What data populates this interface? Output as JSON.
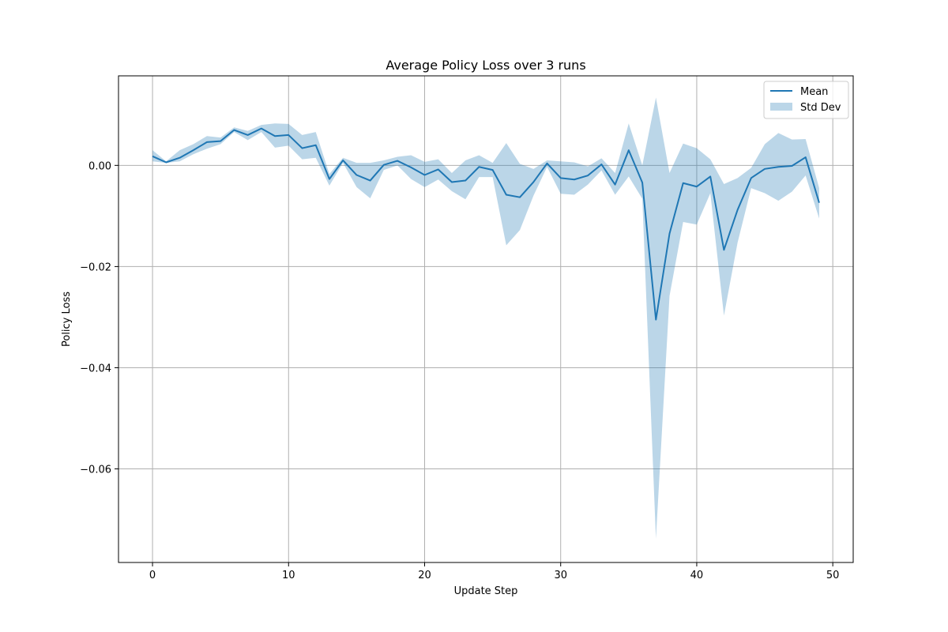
{
  "chart_data": {
    "type": "line",
    "title": "Average Policy Loss over 3 runs",
    "xlabel": "Update Step",
    "ylabel": "Policy Loss",
    "xlim": [
      -2.5,
      51.5
    ],
    "ylim": [
      -0.0785,
      0.0177
    ],
    "xticks": [
      0,
      10,
      20,
      30,
      40,
      50
    ],
    "xtick_labels": [
      "0",
      "10",
      "20",
      "30",
      "40",
      "50"
    ],
    "yticks": [
      -0.06,
      -0.04,
      -0.02,
      0.0
    ],
    "ytick_labels": [
      "−0.06",
      "−0.04",
      "−0.02",
      "0.00"
    ],
    "grid": true,
    "legend_position": "top-right",
    "colors": {
      "line": "#1f77b4",
      "band": "#1f77b4",
      "grid": "#b0b0b0"
    },
    "x": [
      0,
      1,
      2,
      3,
      4,
      5,
      6,
      7,
      8,
      9,
      10,
      11,
      12,
      13,
      14,
      15,
      16,
      17,
      18,
      19,
      20,
      21,
      22,
      23,
      24,
      25,
      26,
      27,
      28,
      29,
      30,
      31,
      32,
      33,
      34,
      35,
      36,
      37,
      38,
      39,
      40,
      41,
      42,
      43,
      44,
      45,
      46,
      47,
      48,
      49
    ],
    "series": [
      {
        "name": "Mean",
        "kind": "line",
        "values": [
          0.0018,
          0.0006,
          0.0015,
          0.003,
          0.0046,
          0.0048,
          0.007,
          0.006,
          0.0073,
          0.0058,
          0.006,
          0.0034,
          0.004,
          -0.0027,
          0.001,
          -0.0019,
          -0.003,
          0.0001,
          0.0009,
          -0.0004,
          -0.0019,
          -0.0008,
          -0.0033,
          -0.003,
          -0.0003,
          -0.0009,
          -0.0058,
          -0.0063,
          -0.0033,
          0.0004,
          -0.0025,
          -0.0028,
          -0.002,
          0.0002,
          -0.0038,
          0.003,
          -0.0034,
          -0.0305,
          -0.0135,
          -0.0035,
          -0.0042,
          -0.0022,
          -0.0167,
          -0.0088,
          -0.0025,
          -0.0007,
          -0.0003,
          -0.0001,
          0.0016,
          -0.0074
        ]
      },
      {
        "name": "Std Dev",
        "kind": "band",
        "upper": [
          0.003,
          0.0008,
          0.003,
          0.0042,
          0.0058,
          0.0055,
          0.0075,
          0.0068,
          0.008,
          0.0083,
          0.0082,
          0.006,
          0.0066,
          -0.0017,
          0.0015,
          0.0005,
          0.0005,
          0.001,
          0.0017,
          0.002,
          0.0007,
          0.0012,
          -0.0015,
          0.001,
          0.002,
          0.0005,
          0.0044,
          0.0003,
          -0.0007,
          0.001,
          0.0008,
          0.0006,
          -0.0002,
          0.0014,
          -0.0015,
          0.0083,
          0.0,
          0.0134,
          -0.0015,
          0.0043,
          0.0034,
          0.0012,
          -0.0037,
          -0.0025,
          -0.0005,
          0.0042,
          0.0064,
          0.0051,
          0.0052,
          -0.0045
        ],
        "lower": [
          0.0008,
          0.0005,
          0.0008,
          0.0022,
          0.0033,
          0.0042,
          0.0066,
          0.005,
          0.0066,
          0.0035,
          0.0039,
          0.0012,
          0.0015,
          -0.004,
          0.0005,
          -0.0043,
          -0.0065,
          -0.0009,
          0.0,
          -0.0027,
          -0.0043,
          -0.0028,
          -0.0051,
          -0.0067,
          -0.0023,
          -0.0023,
          -0.0158,
          -0.0128,
          -0.006,
          -0.0003,
          -0.0056,
          -0.0058,
          -0.0038,
          -0.001,
          -0.0058,
          -0.0022,
          -0.0066,
          -0.0738,
          -0.0258,
          -0.0112,
          -0.0117,
          -0.0055,
          -0.0297,
          -0.0153,
          -0.0045,
          -0.0055,
          -0.007,
          -0.0052,
          -0.002,
          -0.0105
        ]
      }
    ]
  }
}
